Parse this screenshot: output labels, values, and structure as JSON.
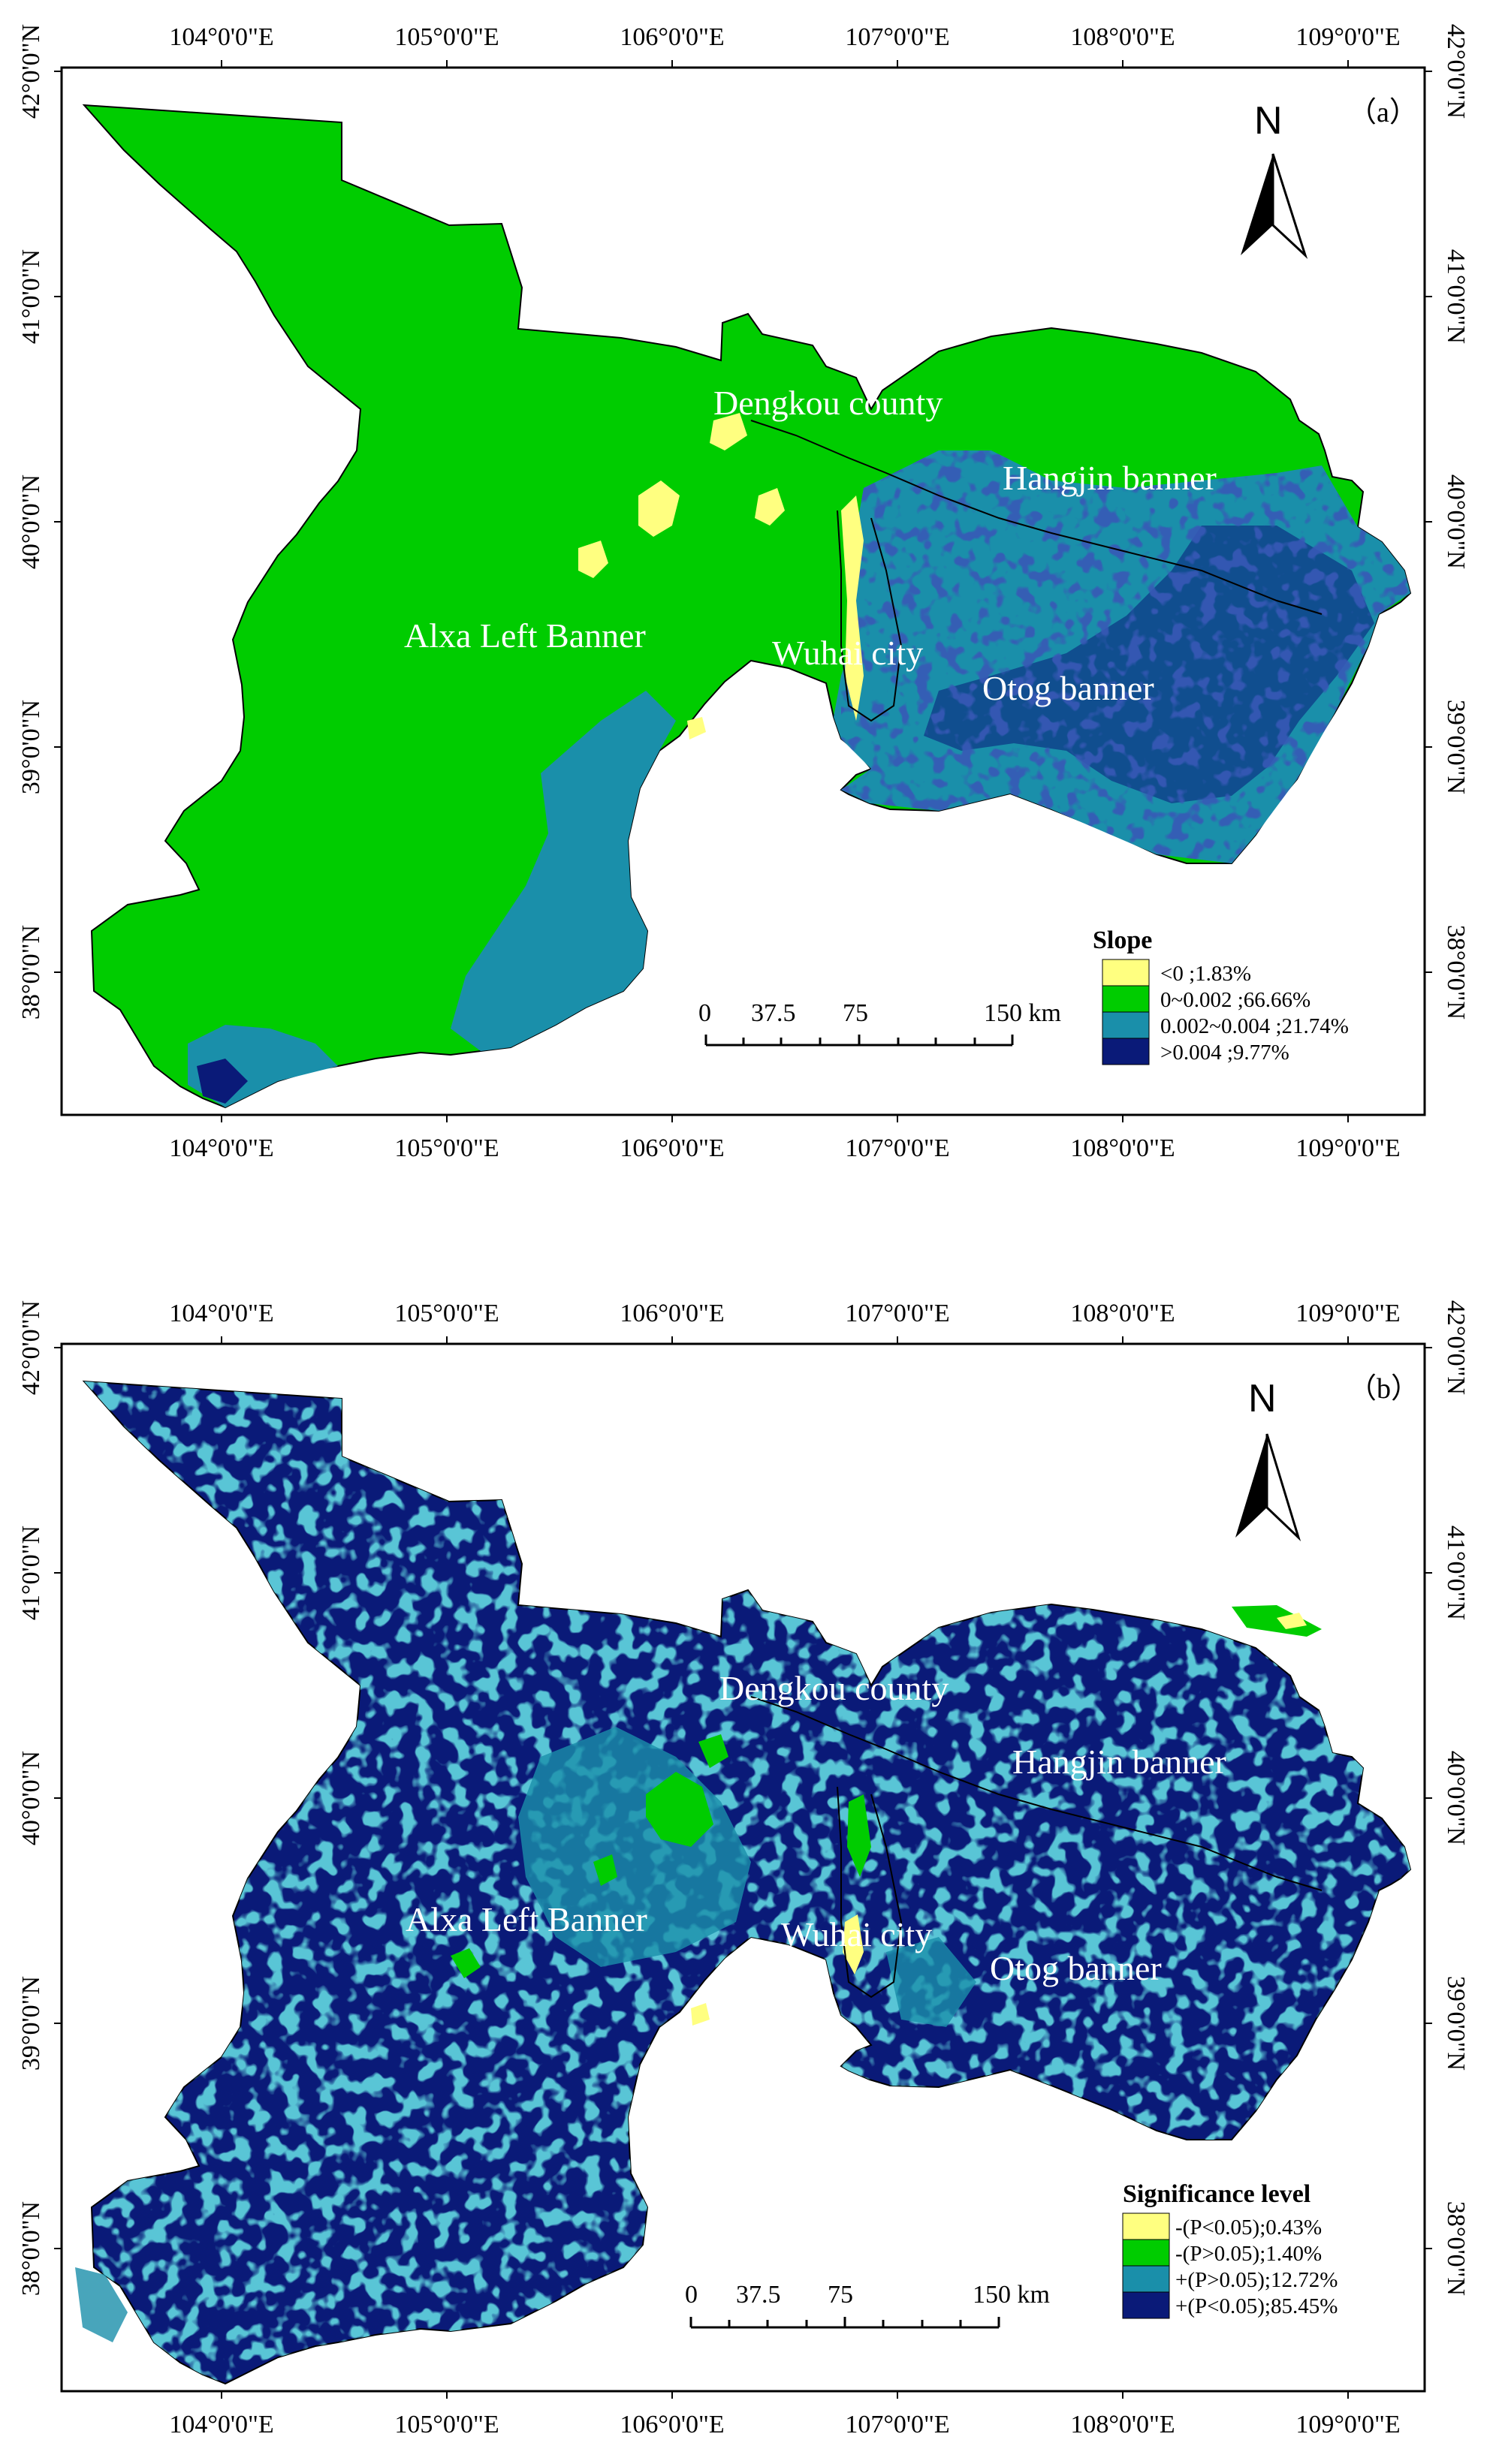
{
  "colors": {
    "yellow": "#ffff80",
    "green": "#00cc00",
    "teal": "#1a8faa",
    "navy": "#0a1a78"
  },
  "icons": [
    "north-arrow-icon"
  ],
  "maps": [
    {
      "panel_label": "（a）",
      "north": "N",
      "top_longitudes": [
        "104°0'0\"E",
        "105°0'0\"E",
        "106°0'0\"E",
        "107°0'0\"E",
        "108°0'0\"E",
        "109°0'0\"E"
      ],
      "bottom_longitudes": [
        "104°0'0\"E",
        "105°0'0\"E",
        "106°0'0\"E",
        "107°0'0\"E",
        "108°0'0\"E",
        "109°0'0\"E"
      ],
      "left_latitudes": [
        "42°0'0\"N",
        "41°0'0\"N",
        "40°0'0\"N",
        "39°0'0\"N",
        "38°0'0\"N"
      ],
      "right_latitudes": [
        "42°0'0\"N",
        "41°0'0\"N",
        "40°0'0\"N",
        "39°0'0\"N",
        "38°0'0\"N"
      ],
      "places": [
        "Dengkou county",
        "Hangjin banner",
        "Alxa Left Banner",
        "Wuhai city",
        "Otog banner"
      ],
      "scale": {
        "zero": "0",
        "mid1": "37.5",
        "mid2": "75",
        "end": "150 km"
      },
      "legend": {
        "title": "Slope",
        "items": [
          {
            "label": "<0 ;1.83%",
            "color": "#ffff80"
          },
          {
            "label": "0~0.002 ;66.66%",
            "color": "#00cc00"
          },
          {
            "label": "0.002~0.004 ;21.74%",
            "color": "#1a8faa"
          },
          {
            "label": ">0.004 ;9.77%",
            "color": "#0a1a78"
          }
        ]
      }
    },
    {
      "panel_label": "（b）",
      "north": "N",
      "top_longitudes": [
        "104°0'0\"E",
        "105°0'0\"E",
        "106°0'0\"E",
        "107°0'0\"E",
        "108°0'0\"E",
        "109°0'0\"E"
      ],
      "bottom_longitudes": [
        "104°0'0\"E",
        "105°0'0\"E",
        "106°0'0\"E",
        "107°0'0\"E",
        "108°0'0\"E",
        "109°0'0\"E"
      ],
      "left_latitudes": [
        "42°0'0\"N",
        "41°0'0\"N",
        "40°0'0\"N",
        "39°0'0\"N",
        "38°0'0\"N"
      ],
      "right_latitudes": [
        "42°0'0\"N",
        "41°0'0\"N",
        "40°0'0\"N",
        "39°0'0\"N",
        "38°0'0\"N"
      ],
      "places": [
        "Dengkou county",
        "Hangjin banner",
        "Alxa Left Banner",
        "Wuhai city",
        "Otog banner"
      ],
      "scale": {
        "zero": "0",
        "mid1": "37.5",
        "mid2": "75",
        "end": "150 km"
      },
      "legend": {
        "title": "Significance level",
        "items": [
          {
            "label": "-(P<0.05);0.43%",
            "color": "#ffff80"
          },
          {
            "label": "-(P>0.05);1.40%",
            "color": "#00cc00"
          },
          {
            "label": "+(P>0.05);12.72%",
            "color": "#1a8faa"
          },
          {
            "label": "+(P<0.05);85.45%",
            "color": "#0a1a78"
          }
        ]
      }
    }
  ]
}
